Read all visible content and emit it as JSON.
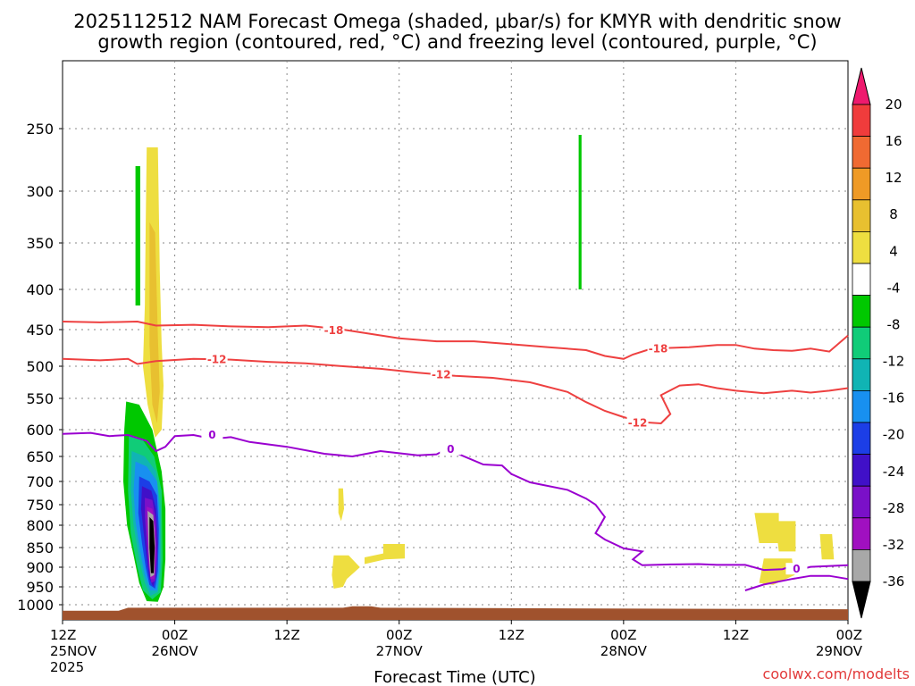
{
  "chart_data": {
    "type": "heatmap",
    "title_line1": "2025112512 NAM Forecast Omega (shaded, μbar/s) for KMYR with dendritic snow",
    "title_line2": "growth region (contoured, red, °C) and freezing level (contoured, purple, °C)",
    "xlabel": "Forecast Time (UTC)",
    "credit": "coolwx.com/modelts",
    "x_range_hours": [
      0,
      84
    ],
    "x_ticks": [
      {
        "hour": 0,
        "line1": "12Z",
        "line2": "25NOV",
        "line3": "2025"
      },
      {
        "hour": 12,
        "line1": "00Z",
        "line2": "26NOV",
        "line3": ""
      },
      {
        "hour": 24,
        "line1": "12Z",
        "line2": "",
        "line3": ""
      },
      {
        "hour": 36,
        "line1": "00Z",
        "line2": "27NOV",
        "line3": ""
      },
      {
        "hour": 48,
        "line1": "12Z",
        "line2": "",
        "line3": ""
      },
      {
        "hour": 60,
        "line1": "00Z",
        "line2": "28NOV",
        "line3": ""
      },
      {
        "hour": 72,
        "line1": "12Z",
        "line2": "",
        "line3": ""
      },
      {
        "hour": 84,
        "line1": "00Z",
        "line2": "29NOV",
        "line3": ""
      }
    ],
    "y_ticks": [
      "250",
      "300",
      "350",
      "400",
      "450",
      "500",
      "550",
      "600",
      "650",
      "700",
      "750",
      "800",
      "850",
      "900",
      "950",
      "1000"
    ],
    "y_tick_values": [
      250,
      300,
      350,
      400,
      450,
      500,
      550,
      600,
      650,
      700,
      750,
      800,
      850,
      900,
      950,
      1000
    ],
    "y_range_hpa": [
      200,
      1020
    ],
    "colorbar": {
      "labels": [
        "20",
        "16",
        "12",
        "8",
        "4",
        "-4",
        "-8",
        "-12",
        "-16",
        "-20",
        "-24",
        "-28",
        "-32",
        "-36"
      ],
      "colors": [
        "#ee1a6e",
        "#f03c3c",
        "#f06a32",
        "#ef9a26",
        "#e8c030",
        "#eede40",
        "#ffffff",
        "#00c800",
        "#10cc78",
        "#10b4b4",
        "#1890f0",
        "#1c3ee6",
        "#4010c8",
        "#7a10c8",
        "#a010c0",
        "#a8a8a8",
        "#000000"
      ]
    },
    "contours": {
      "minus18": {
        "label": "-18",
        "color": "#ee4040",
        "points": [
          [
            0,
            440
          ],
          [
            4,
            441
          ],
          [
            8,
            440
          ],
          [
            10,
            445
          ],
          [
            14,
            444
          ],
          [
            18,
            446
          ],
          [
            22,
            447
          ],
          [
            26,
            445
          ],
          [
            30,
            450
          ],
          [
            33,
            456
          ],
          [
            36,
            462
          ],
          [
            40,
            466
          ],
          [
            44,
            466
          ],
          [
            48,
            470
          ],
          [
            52,
            474
          ],
          [
            56,
            478
          ],
          [
            58,
            486
          ],
          [
            60,
            490
          ],
          [
            61,
            484
          ],
          [
            63,
            476
          ],
          [
            67,
            474
          ],
          [
            70,
            471
          ],
          [
            72,
            471
          ],
          [
            74,
            476
          ],
          [
            76,
            478
          ],
          [
            78,
            479
          ],
          [
            80,
            476
          ],
          [
            82,
            480
          ],
          [
            84,
            458
          ]
        ]
      },
      "minus12": {
        "label": "-12",
        "color": "#ee4040",
        "points": [
          [
            0,
            490
          ],
          [
            4,
            492
          ],
          [
            7,
            490
          ],
          [
            8,
            497
          ],
          [
            10,
            493
          ],
          [
            14,
            490
          ],
          [
            18,
            491
          ],
          [
            22,
            494
          ],
          [
            26,
            496
          ],
          [
            30,
            500
          ],
          [
            34,
            504
          ],
          [
            38,
            510
          ],
          [
            42,
            515
          ],
          [
            46,
            518
          ],
          [
            50,
            525
          ],
          [
            54,
            540
          ],
          [
            56,
            556
          ],
          [
            58,
            570
          ],
          [
            60,
            580
          ],
          [
            62,
            588
          ],
          [
            64,
            590
          ],
          [
            65,
            575
          ],
          [
            64,
            545
          ],
          [
            66,
            530
          ],
          [
            68,
            528
          ],
          [
            70,
            534
          ],
          [
            72,
            538
          ],
          [
            75,
            542
          ],
          [
            78,
            538
          ],
          [
            80,
            541
          ],
          [
            82,
            538
          ],
          [
            84,
            534
          ]
        ]
      },
      "zero": {
        "label": "0",
        "color": "#9a00d0",
        "points": [
          [
            0,
            608
          ],
          [
            3,
            606
          ],
          [
            5,
            612
          ],
          [
            7,
            610
          ],
          [
            9,
            621
          ],
          [
            10,
            640
          ],
          [
            11,
            632
          ],
          [
            12,
            612
          ],
          [
            14,
            610
          ],
          [
            16,
            617
          ],
          [
            18,
            614
          ],
          [
            20,
            623
          ],
          [
            24,
            632
          ],
          [
            28,
            645
          ],
          [
            31,
            650
          ],
          [
            34,
            640
          ],
          [
            38,
            648
          ],
          [
            40,
            646
          ],
          [
            41,
            637
          ],
          [
            42,
            643
          ],
          [
            45,
            666
          ],
          [
            47,
            668
          ],
          [
            48,
            685
          ],
          [
            50,
            702
          ],
          [
            54,
            718
          ],
          [
            56,
            737
          ],
          [
            57,
            750
          ],
          [
            58,
            780
          ],
          [
            57,
            818
          ],
          [
            58,
            832
          ],
          [
            60,
            852
          ],
          [
            62,
            860
          ],
          [
            61,
            880
          ],
          [
            62,
            895
          ],
          [
            65,
            893
          ],
          [
            68,
            892
          ],
          [
            70,
            894
          ],
          [
            73,
            894
          ],
          [
            75,
            907
          ],
          [
            77,
            905
          ],
          [
            78,
            897
          ],
          [
            79,
            905
          ],
          [
            80,
            899
          ],
          [
            84,
            895
          ]
        ]
      },
      "zero_lower": {
        "label": "0",
        "color": "#9a00d0",
        "points": [
          [
            73,
            960
          ],
          [
            75,
            944
          ],
          [
            78,
            930
          ],
          [
            80,
            922
          ],
          [
            82,
            922
          ],
          [
            84,
            930
          ]
        ]
      }
    },
    "omega_regions_description": "rising motion (negative omega) column near 25NOV 18Z–21Z, 550–990 hPa, minimum below -36; small positive patches near 27NOV and late 28NOV"
  }
}
